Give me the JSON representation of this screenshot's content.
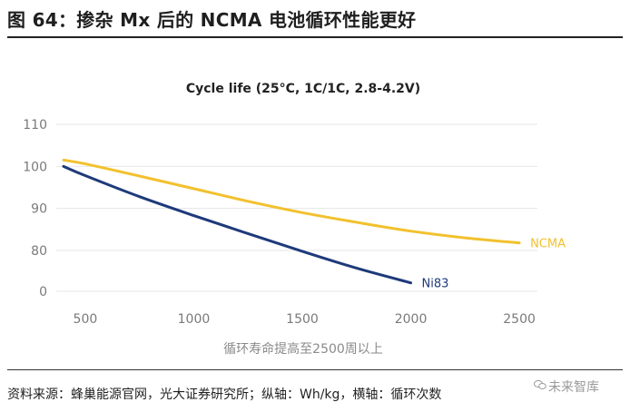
{
  "figure": {
    "title": "图 64：掺杂 Mx 后的 NCMA 电池循环性能更好",
    "source": "资料来源：蜂巢能源官网，光大证券研究所；纵轴：Wh/kg，横轴：循环次数",
    "watermark": "未来智库"
  },
  "chart_data": {
    "type": "line",
    "title": "Cycle life (25°C, 1C/1C, 2.8-4.2V)",
    "xlabel": "循环寿命提高至2500周以上",
    "ylabel": "",
    "xlim": [
      400,
      2600
    ],
    "ylim": [
      0,
      110
    ],
    "x_ticks": [
      500,
      1000,
      1500,
      2000,
      2500
    ],
    "y_ticks": [
      0,
      80,
      90,
      100,
      110
    ],
    "y_axis_broken": true,
    "grid": "horizontal",
    "legend": "inline-labels",
    "series": [
      {
        "name": "NCMA",
        "color": "#F2C12E",
        "x": [
          400,
          500,
          750,
          1000,
          1250,
          1500,
          1750,
          2000,
          2250,
          2500
        ],
        "y": [
          101.5,
          100.6,
          97.7,
          94.7,
          91.7,
          89.0,
          86.7,
          84.6,
          83.0,
          81.8
        ]
      },
      {
        "name": "Ni83",
        "color": "#1E3A7A",
        "x": [
          400,
          500,
          750,
          1000,
          1250,
          1500,
          1750,
          2000
        ],
        "y": [
          100.0,
          97.8,
          92.8,
          88.3,
          84.0,
          79.8,
          75.8,
          72.3
        ]
      }
    ]
  }
}
